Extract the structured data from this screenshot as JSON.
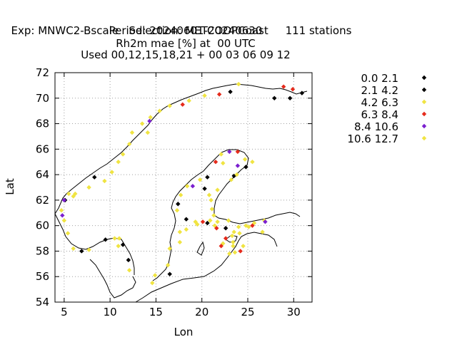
{
  "title": {
    "exp": "Exp: MNWC2-Bscale",
    "selection": "Selection: METCOOPCoast",
    "stations": "111 stations",
    "period": "Period: 20240601-20240630",
    "parameter": "Rh2m mae [%] at  00 UTC",
    "used": "Used 00,12,15,18,21 + 00 03 06 09 12"
  },
  "axes": {
    "xlabel": "Lon",
    "ylabel": "Lat",
    "xlim": [
      4,
      32
    ],
    "ylim": [
      54,
      72
    ],
    "xticks": [
      5,
      10,
      15,
      20,
      25,
      30
    ],
    "yticks": [
      54,
      56,
      58,
      60,
      62,
      64,
      66,
      68,
      70,
      72
    ],
    "grid": true
  },
  "legend": {
    "placement": "right",
    "items": [
      {
        "label": "0.0 2.1",
        "color": "#000000"
      },
      {
        "label": "2.1 4.2",
        "color": "#000000"
      },
      {
        "label": "4.2 6.3",
        "color": "#f0e442"
      },
      {
        "label": "6.3 8.4",
        "color": "#e52b1c"
      },
      {
        "label": "8.4 10.6",
        "color": "#7b1fcf"
      },
      {
        "label": "10.6 12.7",
        "color": "#f0e442"
      }
    ]
  },
  "chart_data": {
    "type": "scatter",
    "title": "Rh2m mae [%] at  00 UTC",
    "xlabel": "Lon",
    "ylabel": "Lat",
    "xlim": [
      4,
      32
    ],
    "ylim": [
      54,
      72
    ],
    "series": [
      {
        "name": "0.0 2.1",
        "color": "#000000",
        "points": [
          [
            30.9,
            70.4
          ],
          [
            29.6,
            70.0
          ],
          [
            23.5,
            63.9
          ],
          [
            23.1,
            70.5
          ]
        ]
      },
      {
        "name": "2.1 4.2",
        "color": "#000000",
        "points": [
          [
            8.3,
            63.8
          ],
          [
            5.1,
            62.0
          ],
          [
            6.9,
            58.0
          ],
          [
            9.5,
            58.9
          ],
          [
            11.4,
            58.5
          ],
          [
            12.0,
            57.3
          ],
          [
            16.5,
            56.2
          ],
          [
            17.4,
            61.7
          ],
          [
            18.3,
            60.5
          ],
          [
            20.6,
            63.8
          ],
          [
            20.3,
            62.9
          ],
          [
            20.6,
            60.2
          ],
          [
            22.6,
            59.8
          ],
          [
            24.8,
            64.6
          ],
          [
            27.9,
            70.0
          ]
        ]
      },
      {
        "name": "4.2 6.3",
        "color": "#f0e442",
        "points": [
          [
            5.0,
            60.4
          ],
          [
            5.5,
            62.5
          ],
          [
            6.2,
            62.5
          ],
          [
            6.0,
            62.3
          ],
          [
            7.7,
            63.0
          ],
          [
            9.4,
            63.5
          ],
          [
            10.2,
            64.2
          ],
          [
            10.9,
            65.0
          ],
          [
            11.4,
            65.6
          ],
          [
            12.1,
            66.4
          ],
          [
            12.4,
            67.3
          ],
          [
            13.5,
            68.0
          ],
          [
            14.1,
            67.3
          ],
          [
            14.4,
            68.5
          ],
          [
            15.4,
            69.0
          ],
          [
            16.5,
            69.4
          ],
          [
            18.6,
            69.8
          ],
          [
            20.3,
            70.2
          ],
          [
            24.0,
            71.1
          ],
          [
            5.4,
            59.4
          ],
          [
            6.0,
            58.2
          ],
          [
            7.7,
            58.1
          ],
          [
            10.5,
            59.0
          ],
          [
            11.0,
            59.0
          ],
          [
            10.9,
            58.4
          ],
          [
            12.1,
            56.5
          ],
          [
            14.6,
            55.5
          ],
          [
            14.9,
            56.1
          ],
          [
            16.3,
            56.9
          ],
          [
            16.5,
            58.2
          ],
          [
            17.6,
            58.7
          ],
          [
            17.6,
            59.5
          ],
          [
            18.3,
            59.7
          ],
          [
            19.3,
            60.3
          ],
          [
            17.3,
            61.2
          ],
          [
            17.7,
            62.4
          ],
          [
            18.4,
            63.1
          ],
          [
            19.8,
            63.6
          ],
          [
            20.8,
            62.4
          ],
          [
            21.0,
            62.0
          ],
          [
            21.1,
            61.3
          ],
          [
            21.3,
            60.8
          ],
          [
            19.5,
            60.1
          ],
          [
            20.9,
            60.4
          ],
          [
            21.7,
            60.3
          ],
          [
            22.3,
            58.6
          ],
          [
            23.4,
            58.4
          ],
          [
            23.6,
            57.9
          ],
          [
            24.5,
            58.4
          ],
          [
            23.5,
            59.5
          ],
          [
            24.0,
            59.9
          ],
          [
            24.8,
            60.0
          ],
          [
            25.7,
            60.2
          ],
          [
            26.6,
            59.5
          ],
          [
            26.8,
            60.4
          ],
          [
            22.3,
            64.9
          ],
          [
            23.2,
            63.6
          ],
          [
            23.8,
            64.0
          ],
          [
            24.7,
            65.2
          ],
          [
            25.5,
            65.0
          ],
          [
            22.1,
            65.6
          ],
          [
            21.7,
            62.8
          ],
          [
            21.4,
            60.0
          ],
          [
            22.9,
            60.4
          ],
          [
            23.3,
            59.2
          ]
        ]
      },
      {
        "name": "6.3 8.4",
        "color": "#e52b1c",
        "points": [
          [
            17.9,
            69.5
          ],
          [
            21.9,
            70.3
          ],
          [
            28.9,
            70.9
          ],
          [
            29.9,
            70.7
          ],
          [
            21.5,
            65.0
          ],
          [
            23.9,
            65.8
          ],
          [
            20.1,
            60.3
          ],
          [
            21.6,
            59.8
          ],
          [
            22.1,
            58.4
          ],
          [
            22.6,
            59.0
          ],
          [
            24.2,
            58.0
          ],
          [
            25.5,
            60.0
          ]
        ]
      },
      {
        "name": "8.4 10.6",
        "color": "#7b1fcf",
        "points": [
          [
            4.8,
            60.8
          ],
          [
            5.0,
            62.0
          ],
          [
            14.3,
            68.2
          ],
          [
            19.0,
            63.1
          ],
          [
            23.0,
            65.8
          ],
          [
            23.9,
            64.7
          ],
          [
            26.9,
            60.3
          ]
        ]
      },
      {
        "name": "10.6 12.7",
        "color": "#f0e442",
        "points": [
          [
            4.7,
            61.2
          ],
          [
            24.1,
            59.4
          ],
          [
            25.1,
            59.9
          ],
          [
            23.4,
            58.7
          ],
          [
            23.0,
            57.8
          ]
        ]
      }
    ]
  }
}
